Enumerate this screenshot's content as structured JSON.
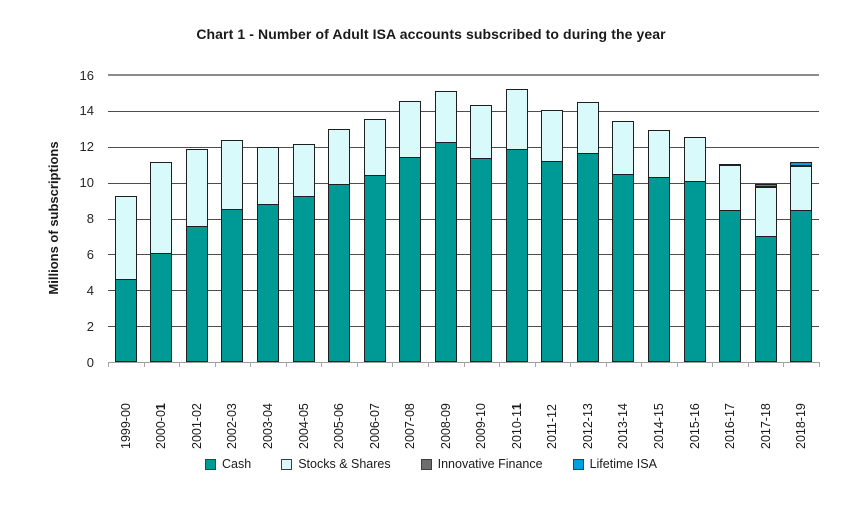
{
  "page": {
    "background": "#ffffff"
  },
  "chart_data": {
    "type": "bar",
    "stacked": true,
    "title": "Chart 1 - Number of Adult ISA accounts subscribed to during the year",
    "ylabel": "Millions of subscriptions",
    "xlabel": "",
    "ylim": [
      0,
      16
    ],
    "yticks": [
      0,
      2,
      4,
      6,
      8,
      10,
      12,
      14,
      16
    ],
    "grid": "horizontal",
    "legend_position": "bottom",
    "categories": [
      "1999-00",
      "2000-01",
      "2001-02",
      "2002-03",
      "2003-04",
      "2004-05",
      "2005-06",
      "2006-07",
      "2007-08",
      "2008-09",
      "2009-10",
      "2010-11",
      "2011-12",
      "2012-13",
      "2013-14",
      "2014-15",
      "2015-16",
      "2016-17",
      "2017-18",
      "2018-19"
    ],
    "bold_last_indices": [
      1,
      11
    ],
    "series": [
      {
        "name": "Cash",
        "color": "#009A96",
        "values": [
          4.6,
          6.1,
          7.6,
          8.55,
          8.8,
          9.25,
          9.9,
          10.4,
          11.45,
          12.25,
          11.4,
          11.85,
          11.2,
          11.65,
          10.5,
          10.3,
          10.1,
          8.5,
          7.0,
          8.5
        ]
      },
      {
        "name": "Stocks & Shares",
        "color": "#D8FAFA",
        "values": [
          4.7,
          5.15,
          4.35,
          3.9,
          3.25,
          2.95,
          3.1,
          3.15,
          3.2,
          2.9,
          3.0,
          3.4,
          2.9,
          2.9,
          3.0,
          2.7,
          2.5,
          2.55,
          2.8,
          2.5
        ]
      },
      {
        "name": "Innovative Finance",
        "color": "#6E6E6E",
        "values": [
          0,
          0,
          0,
          0,
          0,
          0,
          0,
          0,
          0,
          0,
          0,
          0,
          0,
          0,
          0,
          0,
          0,
          0.07,
          0.04,
          0.04
        ]
      },
      {
        "name": "Lifetime ISA",
        "color": "#00A0DC",
        "values": [
          0,
          0,
          0,
          0,
          0,
          0,
          0,
          0,
          0,
          0,
          0,
          0,
          0,
          0,
          0,
          0,
          0,
          0,
          0.18,
          0.24
        ]
      }
    ],
    "totals": [
      9.3,
      11.25,
      11.95,
      12.45,
      12.05,
      12.2,
      13.0,
      13.55,
      14.65,
      15.15,
      14.4,
      15.25,
      14.1,
      14.55,
      13.5,
      13.0,
      12.6,
      11.12,
      10.02,
      11.28
    ]
  },
  "colors": {
    "bar_border": "#1F1F1F",
    "gridline": "#4D4D4D",
    "top_gridline": "#8C8C8C",
    "axis_line": "#9E9E9E",
    "text": "#1A1A1A"
  }
}
